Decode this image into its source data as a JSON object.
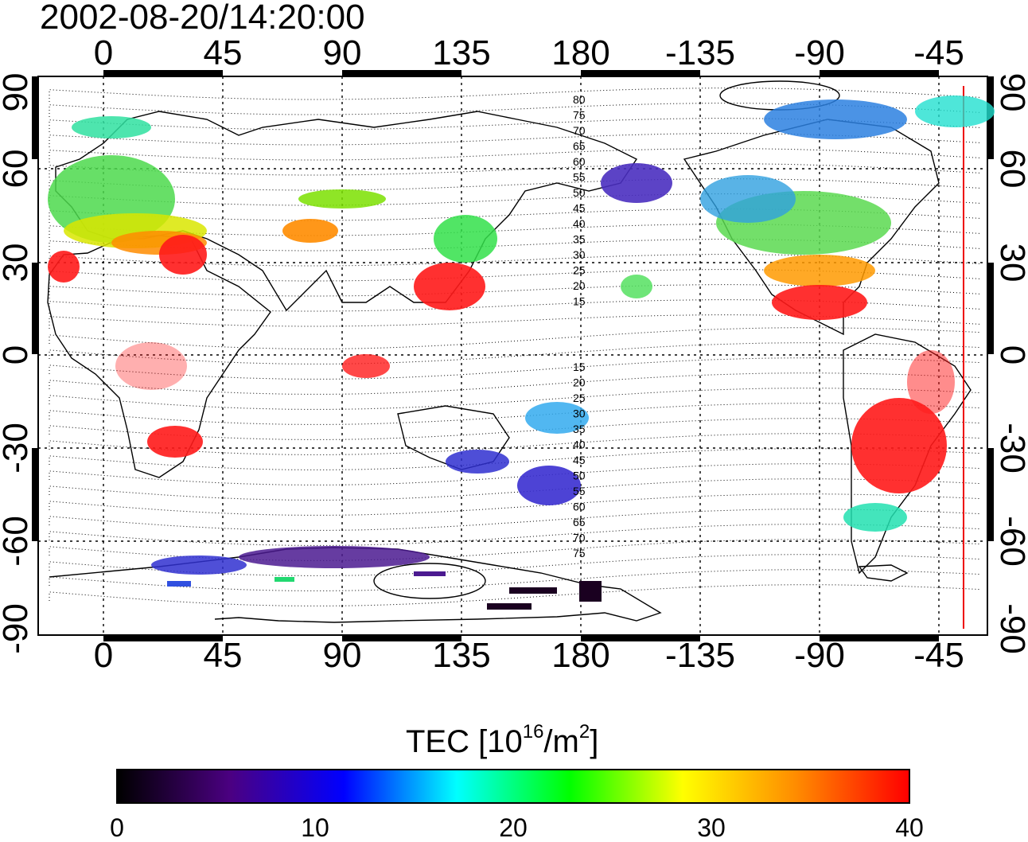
{
  "title": "2002-08-20/14:20:00",
  "map": {
    "top_ticks": [
      "0",
      "45",
      "90",
      "135",
      "180",
      "-135",
      "-90",
      "-45"
    ],
    "bottom_ticks": [
      "0",
      "45",
      "90",
      "135",
      "180",
      "-135",
      "-90",
      "-45"
    ],
    "left_ticks": [
      "90",
      "60",
      "30",
      "0",
      "-30",
      "-60",
      "-90"
    ],
    "right_ticks": [
      "90",
      "60",
      "30",
      "0",
      "-30",
      "-60",
      "-90"
    ],
    "contour_labels_north": [
      "80",
      "75",
      "70",
      "65",
      "60",
      "55",
      "50",
      "45",
      "40",
      "35",
      "30",
      "25",
      "20",
      "15"
    ],
    "contour_labels_south": [
      "15",
      "20",
      "25",
      "30",
      "35",
      "40",
      "45",
      "50",
      "55",
      "60",
      "65",
      "70",
      "75"
    ]
  },
  "colorbar": {
    "title_main": "TEC  [10",
    "title_exp": "16",
    "title_unit": "/m",
    "title_exp2": "2",
    "title_close": "]",
    "labels": [
      "0",
      "10",
      "20",
      "30",
      "40"
    ],
    "colors": [
      "#000000",
      "#4b0082",
      "#0000ff",
      "#00ffff",
      "#00ff00",
      "#ffff00",
      "#ff8c00",
      "#ff0000"
    ]
  }
}
